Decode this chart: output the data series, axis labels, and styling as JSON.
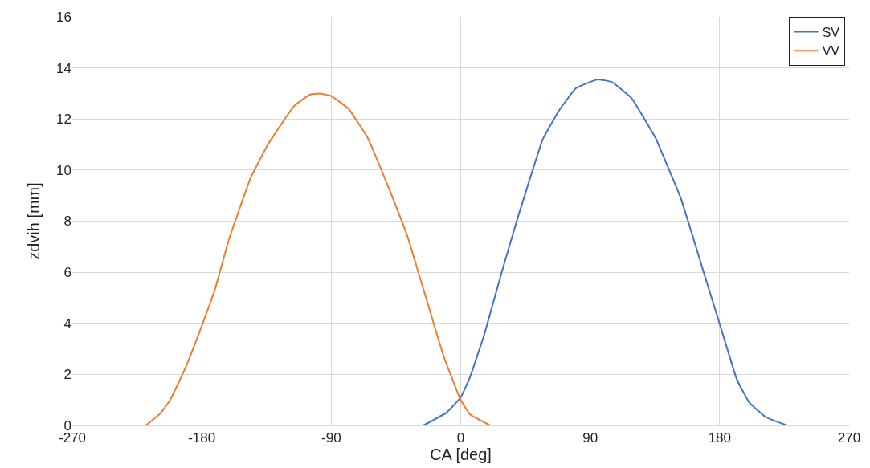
{
  "chart_data": {
    "type": "line",
    "xlabel": "CA [deg]",
    "ylabel": "zdvih [mm]",
    "xlim": [
      -270,
      270
    ],
    "xticks": [
      -270,
      -180,
      -90,
      0,
      90,
      180,
      270
    ],
    "ylim": [
      0,
      16
    ],
    "yticks": [
      0,
      2,
      4,
      6,
      8,
      10,
      12,
      14,
      16
    ],
    "grid": true,
    "legend": "top right",
    "marker": "none",
    "line_style": "solid",
    "series": [
      {
        "name": "SV",
        "color": "#4472c4",
        "x": [
          -26,
          -10,
          0,
          6.5,
          16.6,
          28,
          40,
          50,
          57,
          68,
          80,
          95,
          105,
          119,
          136,
          137,
          153,
          170,
          181,
          192,
          200.6,
          212,
          227
        ],
        "values": [
          0,
          0.5,
          1.1,
          1.9,
          3.6,
          5.9,
          8.2,
          10,
          11.2,
          12.3,
          13.2,
          13.55,
          13.45,
          12.8,
          11.2,
          11.06,
          8.9,
          5.8,
          3.8,
          1.8,
          0.9,
          0.33,
          0
        ]
      },
      {
        "name": "VV",
        "color": "#ed7d31",
        "x": [
          -219,
          -209,
          -202,
          -191,
          -180,
          -171,
          -161,
          -146,
          -134,
          -116,
          -105,
          -98,
          -90,
          -78,
          -65,
          -61,
          -50,
          -37,
          -22,
          -11.5,
          0,
          6.5,
          20.5
        ],
        "values": [
          0,
          0.46,
          1.0,
          2.3,
          3.9,
          5.3,
          7.3,
          9.7,
          11,
          12.5,
          12.95,
          13.0,
          12.9,
          12.4,
          11.3,
          10.8,
          9.3,
          7.4,
          4.6,
          2.65,
          1.0,
          0.43,
          0
        ]
      }
    ]
  }
}
